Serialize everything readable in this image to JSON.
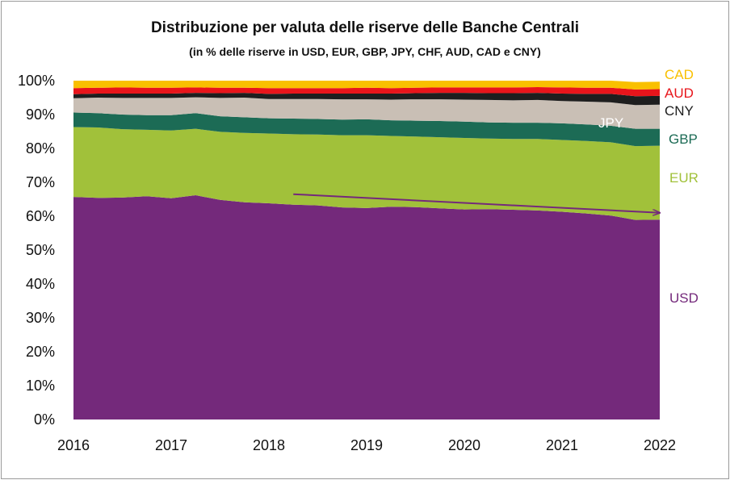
{
  "chart_data": {
    "type": "area",
    "stacked": true,
    "title": "Distribuzione per valuta delle riserve delle Banche Centrali",
    "subtitle": "(in % delle riserve in USD, EUR, GBP, JPY, CHF, AUD, CAD e CNY)",
    "x_ticks": [
      "2016",
      "2017",
      "2018",
      "2019",
      "2020",
      "2021",
      "2022"
    ],
    "xlim": [
      2016,
      2022
    ],
    "y_ticks": [
      "0%",
      "10%",
      "20%",
      "30%",
      "40%",
      "50%",
      "60%",
      "70%",
      "80%",
      "90%",
      "100%"
    ],
    "ylim": [
      0,
      100
    ],
    "grid": false,
    "x": [
      2016.0,
      2016.25,
      2016.5,
      2016.75,
      2017.0,
      2017.25,
      2017.5,
      2017.75,
      2018.0,
      2018.25,
      2018.5,
      2018.75,
      2019.0,
      2019.25,
      2019.5,
      2019.75,
      2020.0,
      2020.25,
      2020.5,
      2020.75,
      2021.0,
      2021.25,
      2021.5,
      2021.75,
      2022.0
    ],
    "series": [
      {
        "name": "USD",
        "color": "#74297b",
        "values": [
          65.7,
          65.4,
          65.5,
          65.9,
          65.3,
          66.2,
          64.8,
          64.1,
          63.8,
          63.4,
          63.2,
          62.6,
          62.4,
          62.8,
          62.7,
          62.3,
          62.0,
          62.1,
          61.9,
          61.7,
          61.3,
          60.8,
          60.2,
          58.9,
          59.0
        ]
      },
      {
        "name": "EUR",
        "color": "#a1c13a",
        "values": [
          20.6,
          20.8,
          20.2,
          19.6,
          20.0,
          19.6,
          20.1,
          20.5,
          20.6,
          20.8,
          20.9,
          21.3,
          21.5,
          20.9,
          20.8,
          21.0,
          21.1,
          20.8,
          20.9,
          21.1,
          21.2,
          21.4,
          21.6,
          21.8,
          21.8
        ]
      },
      {
        "name": "GBP",
        "color": "#1c6b55",
        "values": [
          4.3,
          4.2,
          4.3,
          4.3,
          4.5,
          4.6,
          4.6,
          4.6,
          4.5,
          4.6,
          4.6,
          4.6,
          4.7,
          4.6,
          4.7,
          4.8,
          4.8,
          4.8,
          4.8,
          4.8,
          4.9,
          4.9,
          4.9,
          5.1,
          5.0
        ]
      },
      {
        "name": "JPY",
        "color": "#c9bfb5",
        "values": [
          4.2,
          4.6,
          4.9,
          5.1,
          5.1,
          4.7,
          5.4,
          5.8,
          5.7,
          5.8,
          5.9,
          6.0,
          5.9,
          6.1,
          6.3,
          6.4,
          6.5,
          6.6,
          6.6,
          6.7,
          6.6,
          6.7,
          6.9,
          7.0,
          7.1
        ]
      },
      {
        "name": "CNY",
        "color": "#1e1e1e",
        "values": [
          1.2,
          1.2,
          1.3,
          1.3,
          1.3,
          1.3,
          1.4,
          1.4,
          1.5,
          1.6,
          1.6,
          1.7,
          1.7,
          1.8,
          1.8,
          1.9,
          2.0,
          2.0,
          2.1,
          2.1,
          2.2,
          2.3,
          2.5,
          2.6,
          2.6
        ]
      },
      {
        "name": "AUD",
        "color": "#e8151b",
        "values": [
          1.8,
          1.7,
          1.8,
          1.7,
          1.7,
          1.6,
          1.6,
          1.5,
          1.7,
          1.6,
          1.6,
          1.6,
          1.7,
          1.6,
          1.6,
          1.6,
          1.6,
          1.7,
          1.7,
          1.7,
          1.8,
          1.8,
          1.8,
          2.0,
          2.0
        ]
      },
      {
        "name": "CAD",
        "color": "#f9c000",
        "values": [
          2.2,
          2.1,
          2.0,
          2.1,
          2.1,
          2.0,
          2.1,
          2.1,
          2.2,
          2.2,
          2.2,
          2.2,
          2.1,
          2.2,
          2.1,
          2.0,
          2.0,
          2.0,
          2.0,
          1.9,
          2.0,
          2.1,
          2.1,
          2.2,
          2.2
        ]
      }
    ],
    "trend_arrow": {
      "color": "#74297b",
      "from": {
        "x": 2018.25,
        "y": 66.5
      },
      "to": {
        "x": 2022.0,
        "y": 61.0
      }
    }
  }
}
